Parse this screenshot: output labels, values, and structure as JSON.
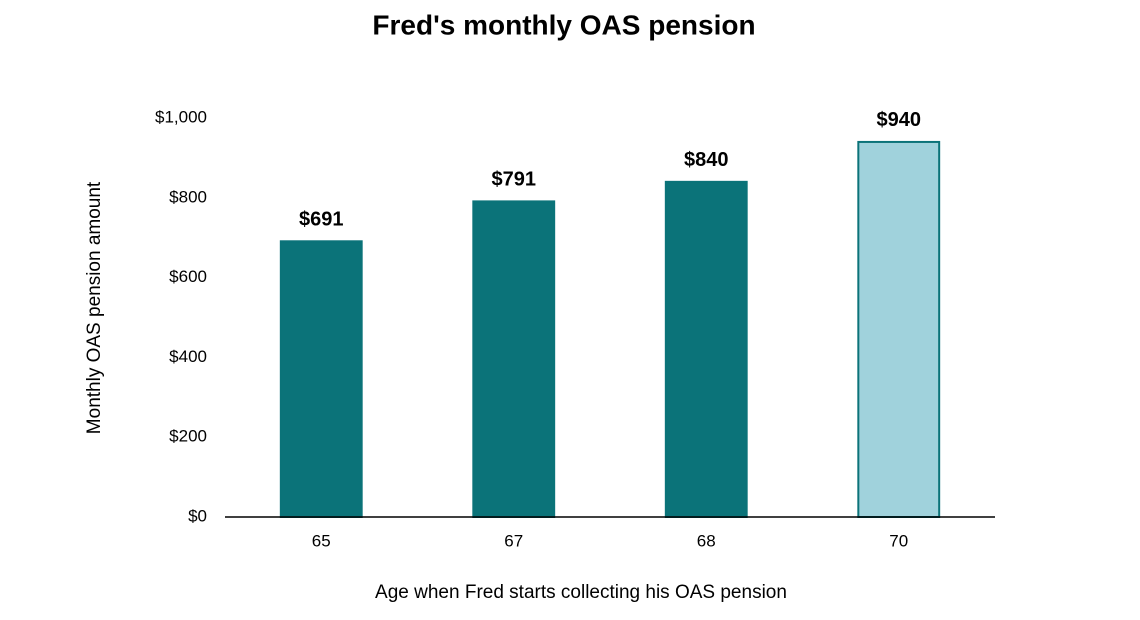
{
  "chart_data": {
    "type": "bar",
    "title": "Fred's monthly OAS pension",
    "xlabel": "Age when Fred starts collecting his OAS pension",
    "ylabel": "Monthly OAS pension amount",
    "categories": [
      "65",
      "67",
      "68",
      "70"
    ],
    "values": [
      691,
      791,
      840,
      940
    ],
    "value_labels": [
      "$691",
      "$791",
      "$840",
      "$940"
    ],
    "colors": [
      "#0b7379",
      "#0b7379",
      "#0b7379",
      "#a0d2dc"
    ],
    "edgecolor": "#0b7379",
    "ylim": [
      0,
      1000
    ],
    "yticks": [
      {
        "value": 0,
        "label": "$0"
      },
      {
        "value": 200,
        "label": "$200"
      },
      {
        "value": 400,
        "label": "$400"
      },
      {
        "value": 600,
        "label": "$600"
      },
      {
        "value": 800,
        "label": "$800"
      },
      {
        "value": 1000,
        "label": "$1,000"
      }
    ],
    "grid": false
  }
}
